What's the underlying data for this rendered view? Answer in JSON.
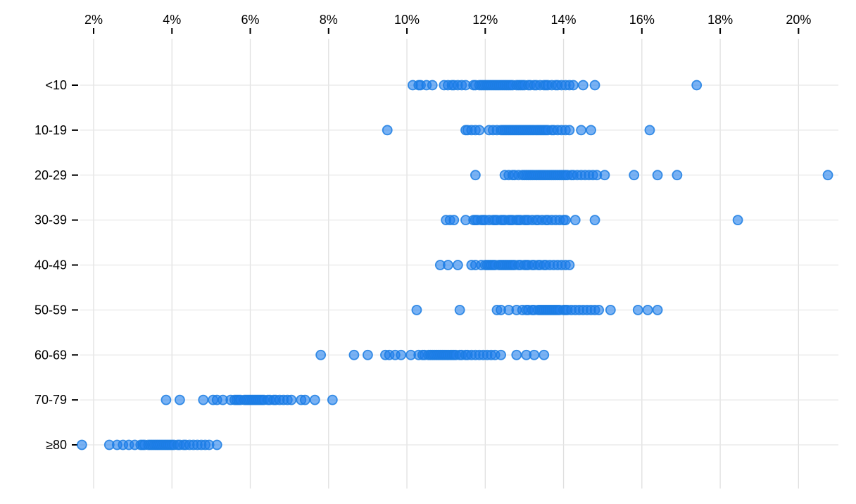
{
  "chart_data": {
    "type": "scatter",
    "variant": "strip-plot",
    "title": "",
    "xlabel": "",
    "ylabel": "",
    "x_axis": {
      "ticks": [
        2,
        4,
        6,
        8,
        10,
        12,
        14,
        16,
        18,
        20
      ],
      "tick_format": "percent",
      "range": [
        1.4,
        21.0
      ],
      "grid": true,
      "position": "top"
    },
    "y_axis": {
      "categories": [
        "<10",
        "10-19",
        "20-29",
        "30-39",
        "40-49",
        "50-59",
        "60-69",
        "70-79",
        "≥80"
      ],
      "grid": true
    },
    "legend": "none",
    "colors": {
      "dot_fill": "#1f7eec",
      "dot_stroke": "#1b7ce2",
      "grid_vertical": "#e0e0e0",
      "grid_horizontal": "#e7e7e7",
      "axis_tick": "#000000",
      "label_text": "#000000"
    },
    "series": [
      {
        "category": "<10",
        "values": [
          10.15,
          10.3,
          10.35,
          10.5,
          10.65,
          10.95,
          11.05,
          11.15,
          11.2,
          11.3,
          11.4,
          11.5,
          11.7,
          11.75,
          11.85,
          11.9,
          11.95,
          12.0,
          12.05,
          12.1,
          12.15,
          12.2,
          12.25,
          12.3,
          12.35,
          12.4,
          12.45,
          12.5,
          12.55,
          12.6,
          12.65,
          12.7,
          12.8,
          12.85,
          12.9,
          12.95,
          13.0,
          13.1,
          13.15,
          13.25,
          13.3,
          13.4,
          13.5,
          13.55,
          13.6,
          13.7,
          13.8,
          13.85,
          13.95,
          14.05,
          14.15,
          14.25,
          14.5,
          14.8,
          17.4
        ]
      },
      {
        "category": "10-19",
        "values": [
          9.5,
          11.5,
          11.55,
          11.65,
          11.75,
          11.85,
          12.1,
          12.2,
          12.3,
          12.4,
          12.45,
          12.5,
          12.55,
          12.6,
          12.65,
          12.7,
          12.75,
          12.8,
          12.85,
          12.9,
          12.95,
          13.0,
          13.05,
          13.1,
          13.15,
          13.2,
          13.25,
          13.3,
          13.35,
          13.4,
          13.45,
          13.5,
          13.55,
          13.6,
          13.7,
          13.75,
          13.85,
          13.95,
          14.05,
          14.15,
          14.45,
          14.7,
          16.2
        ]
      },
      {
        "category": "20-29",
        "values": [
          11.75,
          12.5,
          12.6,
          12.7,
          12.75,
          12.85,
          12.95,
          13.0,
          13.05,
          13.1,
          13.15,
          13.2,
          13.25,
          13.3,
          13.35,
          13.4,
          13.45,
          13.5,
          13.55,
          13.6,
          13.65,
          13.7,
          13.75,
          13.8,
          13.85,
          13.9,
          13.95,
          14.0,
          14.05,
          14.1,
          14.2,
          14.25,
          14.35,
          14.45,
          14.55,
          14.65,
          14.75,
          14.85,
          15.05,
          15.8,
          16.4,
          16.9,
          20.75
        ]
      },
      {
        "category": "30-39",
        "values": [
          11.0,
          11.1,
          11.2,
          11.5,
          11.7,
          11.75,
          11.8,
          11.9,
          11.95,
          12.0,
          12.1,
          12.2,
          12.25,
          12.3,
          12.4,
          12.45,
          12.5,
          12.6,
          12.65,
          12.7,
          12.8,
          12.85,
          12.9,
          13.0,
          13.05,
          13.1,
          13.2,
          13.3,
          13.35,
          13.45,
          13.55,
          13.6,
          13.7,
          13.8,
          13.9,
          14.0,
          14.05,
          14.3,
          14.8,
          18.45
        ]
      },
      {
        "category": "40-49",
        "values": [
          10.85,
          11.05,
          11.3,
          11.65,
          11.75,
          11.9,
          12.0,
          12.05,
          12.1,
          12.15,
          12.2,
          12.25,
          12.35,
          12.4,
          12.45,
          12.5,
          12.55,
          12.6,
          12.65,
          12.7,
          12.75,
          12.85,
          12.9,
          13.0,
          13.05,
          13.1,
          13.2,
          13.25,
          13.35,
          13.4,
          13.5,
          13.55,
          13.65,
          13.75,
          13.85,
          13.95,
          14.05,
          14.15
        ]
      },
      {
        "category": "50-59",
        "values": [
          10.25,
          11.35,
          12.3,
          12.4,
          12.6,
          12.8,
          12.95,
          13.05,
          13.1,
          13.2,
          13.25,
          13.35,
          13.4,
          13.45,
          13.5,
          13.55,
          13.6,
          13.65,
          13.7,
          13.75,
          13.8,
          13.85,
          13.9,
          14.0,
          14.05,
          14.1,
          14.2,
          14.3,
          14.4,
          14.5,
          14.6,
          14.7,
          14.8,
          14.9,
          15.2,
          15.9,
          16.15,
          16.4
        ]
      },
      {
        "category": "60-69",
        "values": [
          7.8,
          8.65,
          9.0,
          9.45,
          9.55,
          9.7,
          9.85,
          10.1,
          10.3,
          10.4,
          10.45,
          10.55,
          10.6,
          10.65,
          10.7,
          10.75,
          10.8,
          10.85,
          10.9,
          10.95,
          11.0,
          11.05,
          11.1,
          11.15,
          11.2,
          11.25,
          11.35,
          11.4,
          11.5,
          11.55,
          11.65,
          11.75,
          11.85,
          11.95,
          12.05,
          12.15,
          12.25,
          12.4,
          12.8,
          13.05,
          13.25,
          13.5
        ]
      },
      {
        "category": "70-79",
        "values": [
          3.85,
          4.2,
          4.8,
          5.05,
          5.15,
          5.3,
          5.5,
          5.6,
          5.65,
          5.7,
          5.75,
          5.85,
          5.9,
          5.95,
          6.0,
          6.05,
          6.1,
          6.15,
          6.2,
          6.25,
          6.3,
          6.35,
          6.45,
          6.5,
          6.6,
          6.65,
          6.75,
          6.85,
          6.95,
          7.05,
          7.3,
          7.4,
          7.65,
          8.1
        ]
      },
      {
        "category": "≥80",
        "values": [
          1.7,
          2.4,
          2.6,
          2.75,
          2.9,
          3.05,
          3.2,
          3.25,
          3.3,
          3.4,
          3.45,
          3.5,
          3.55,
          3.6,
          3.65,
          3.7,
          3.75,
          3.8,
          3.85,
          3.9,
          3.95,
          4.0,
          4.05,
          4.15,
          4.2,
          4.3,
          4.35,
          4.45,
          4.55,
          4.65,
          4.75,
          4.85,
          4.95,
          5.15
        ]
      }
    ]
  }
}
